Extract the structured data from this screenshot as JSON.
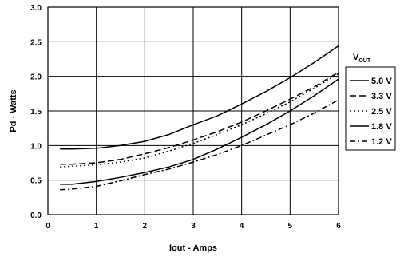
{
  "chart_data": {
    "type": "line",
    "xlabel": "Iout - Amps",
    "ylabel": "Pd - Watts",
    "xlim": [
      0,
      6
    ],
    "ylim": [
      0,
      3.0
    ],
    "xticks": [
      "0",
      "1",
      "2",
      "3",
      "4",
      "5",
      "6"
    ],
    "yticks": [
      "0.0",
      "0.5",
      "1.0",
      "1.5",
      "2.0",
      "2.5",
      "3.0"
    ],
    "grid": true,
    "legend_position": "right",
    "legend_title": {
      "main": "V",
      "sub": "OUT"
    },
    "series": [
      {
        "name": "5.0 V",
        "dash": "solid",
        "x": [
          0.25,
          0.5,
          1,
          1.5,
          2,
          2.5,
          3,
          3.5,
          4,
          4.5,
          5,
          5.5,
          6
        ],
        "y": [
          0.95,
          0.95,
          0.96,
          1.0,
          1.06,
          1.16,
          1.3,
          1.43,
          1.6,
          1.78,
          1.98,
          2.2,
          2.44
        ]
      },
      {
        "name": "3.3 V",
        "dash": "long-dash",
        "x": [
          0.25,
          0.5,
          1,
          1.5,
          2,
          2.5,
          3,
          3.5,
          4,
          4.5,
          5,
          5.5,
          6
        ],
        "y": [
          0.73,
          0.73,
          0.75,
          0.8,
          0.88,
          0.97,
          1.08,
          1.2,
          1.34,
          1.5,
          1.67,
          1.85,
          2.06
        ]
      },
      {
        "name": "2.5 V",
        "dash": "dotted",
        "x": [
          0.25,
          0.5,
          1,
          1.5,
          2,
          2.5,
          3,
          3.5,
          4,
          4.5,
          5,
          5.5,
          6
        ],
        "y": [
          0.69,
          0.7,
          0.72,
          0.76,
          0.82,
          0.92,
          1.03,
          1.16,
          1.3,
          1.46,
          1.63,
          1.83,
          2.04
        ]
      },
      {
        "name": "1.8 V",
        "dash": "solid",
        "x": [
          0.25,
          0.5,
          1,
          1.5,
          2,
          2.5,
          3,
          3.5,
          4,
          4.5,
          5,
          5.5,
          6
        ],
        "y": [
          0.44,
          0.44,
          0.48,
          0.54,
          0.61,
          0.69,
          0.8,
          0.95,
          1.12,
          1.3,
          1.5,
          1.72,
          1.96
        ]
      },
      {
        "name": "1.2 V",
        "dash": "dash-dot",
        "x": [
          0.25,
          0.5,
          1,
          1.5,
          2,
          2.5,
          3,
          3.5,
          4,
          4.5,
          5,
          5.5,
          6
        ],
        "y": [
          0.36,
          0.37,
          0.41,
          0.49,
          0.58,
          0.66,
          0.76,
          0.87,
          1.0,
          1.15,
          1.3,
          1.47,
          1.66
        ]
      }
    ]
  }
}
